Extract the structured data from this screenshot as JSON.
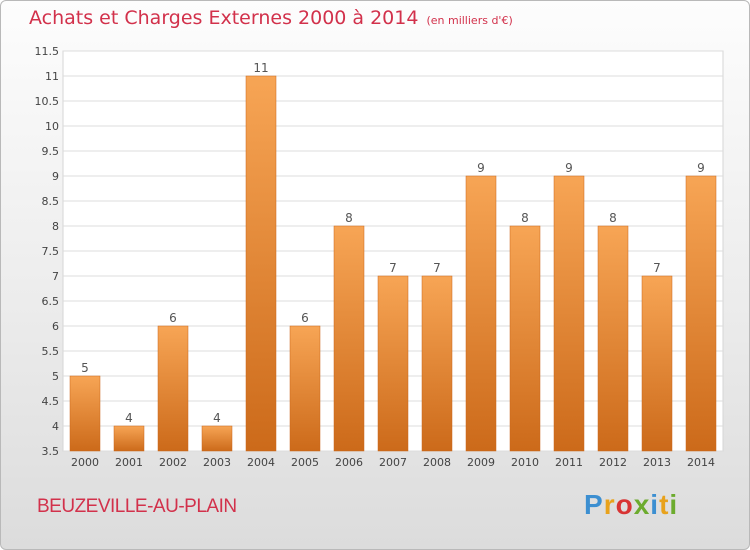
{
  "chart_data": {
    "type": "bar",
    "title": "Achats et Charges Externes 2000 à 2014",
    "unit": "(en milliers d'€)",
    "categories": [
      "2000",
      "2001",
      "2002",
      "2003",
      "2004",
      "2005",
      "2006",
      "2007",
      "2008",
      "2009",
      "2010",
      "2011",
      "2012",
      "2013",
      "2014"
    ],
    "values": [
      5,
      4,
      6,
      4,
      11,
      6,
      8,
      7,
      7,
      9,
      8,
      9,
      8,
      7,
      9
    ],
    "ylim": [
      3.5,
      11.5
    ],
    "yticks": [
      "3.5",
      "4",
      "4.5",
      "5",
      "5.5",
      "6",
      "6.5",
      "7",
      "7.5",
      "8",
      "8.5",
      "9",
      "9.5",
      "10",
      "10.5",
      "11",
      "11.5"
    ],
    "grid": true,
    "bar_color": "#f0953e"
  },
  "commune": "BEUZEVILLE-AU-PLAIN",
  "brand": {
    "name": "Proxiti",
    "letters": [
      {
        "char": "P",
        "color": "#3c8fd1"
      },
      {
        "char": "r",
        "color": "#e8a21c"
      },
      {
        "char": "o",
        "color": "#d83434"
      },
      {
        "char": "x",
        "color": "#6cab2e"
      },
      {
        "char": "i",
        "color": "#3c8fd1"
      },
      {
        "char": "t",
        "color": "#e8a21c"
      },
      {
        "char": "i",
        "color": "#6cab2e"
      }
    ]
  }
}
